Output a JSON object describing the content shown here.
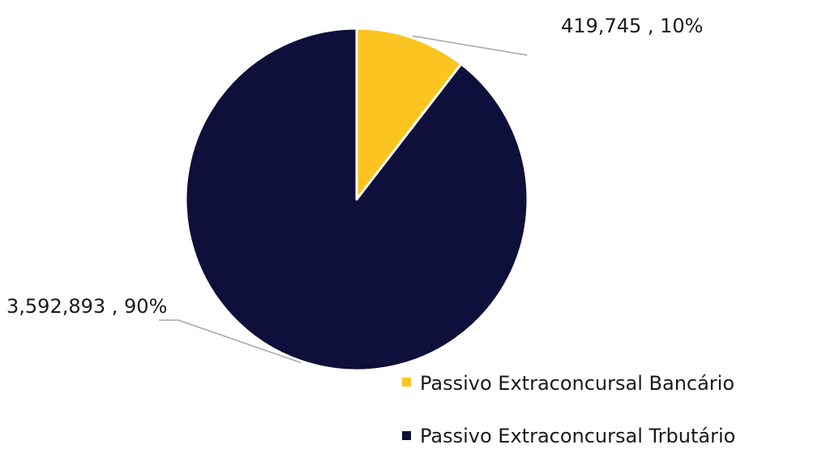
{
  "chart_data": {
    "type": "pie",
    "title": "",
    "categories": [
      "Passivo Extraconcursal Bancário",
      "Passivo Extraconcursal Trbutário"
    ],
    "values": [
      419745,
      3592893
    ],
    "percentages": [
      10,
      90
    ],
    "value_labels": [
      "419,745",
      "3,592,893"
    ],
    "percent_labels": [
      "10%",
      "90%"
    ],
    "data_labels": [
      "419,745 , 10%",
      "3,592,893 , 90%"
    ],
    "colors": [
      "#FBC420",
      "#0E0F3A"
    ],
    "start_angle_deg": 0,
    "direction": "clockwise",
    "legend": {
      "position": "bottom-right",
      "entries": [
        "Passivo Extraconcursal Bancário",
        "Passivo Extraconcursal Trbutário"
      ]
    }
  }
}
